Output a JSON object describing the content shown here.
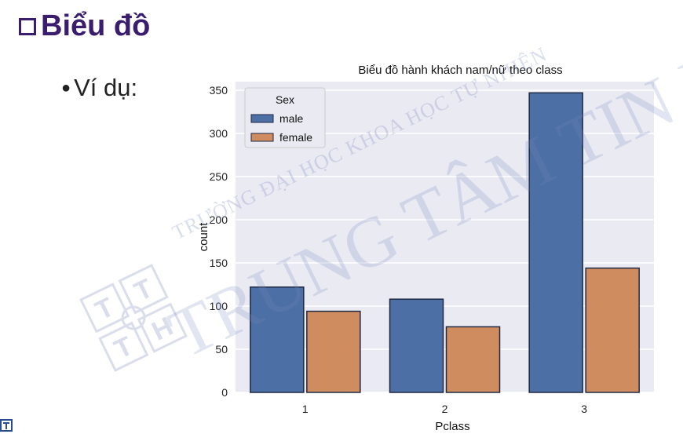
{
  "slide": {
    "title": "Biểu đồ",
    "bullet": "Ví dụ:",
    "watermark_line1": "TRƯỜNG ĐẠI HỌC KHOA HỌC TỰ NHIÊN",
    "watermark_line2": "TRUNG TÂM TIN HỌC",
    "logo_letters": [
      "T",
      "T",
      "T",
      "H"
    ]
  },
  "chart_data": {
    "type": "bar",
    "title": "Biểu đồ hành khách nam/nữ theo class",
    "xlabel": "Pclass",
    "ylabel": "count",
    "categories": [
      "1",
      "2",
      "3"
    ],
    "series": [
      {
        "name": "male",
        "values": [
          122,
          108,
          347
        ],
        "color": "#4c6fa5"
      },
      {
        "name": "female",
        "values": [
          94,
          76,
          144
        ],
        "color": "#cf8c5f"
      }
    ],
    "ylim": [
      0,
      360
    ],
    "yticks": [
      0,
      50,
      100,
      150,
      200,
      250,
      300,
      350
    ],
    "grid": true,
    "background": "#eaeaf2",
    "legend": {
      "title": "Sex",
      "placement": "top-left"
    }
  }
}
